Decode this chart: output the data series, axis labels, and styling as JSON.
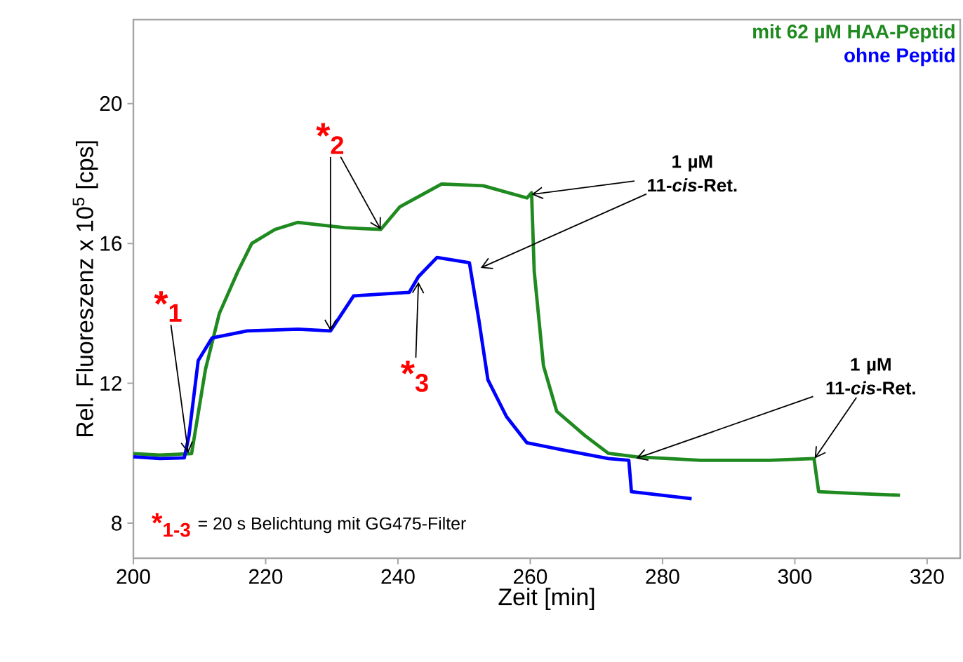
{
  "chart_data": {
    "type": "line",
    "xlabel": "Zeit [min]",
    "ylabel": "Rel. Fluoreszenz x 10$^{5}$ [cps]",
    "xlim": [
      200,
      325
    ],
    "xticks": [
      200,
      220,
      240,
      260,
      280,
      300,
      320
    ],
    "ylim": [
      7,
      22.4
    ],
    "yticks": [
      8,
      12,
      16,
      20
    ],
    "grid": false,
    "legend": "top right",
    "marker": "none",
    "line_style": "solid",
    "series": [
      {
        "name": "mit 62 µM HAA-Peptid",
        "color": "#1f8a1f",
        "x": [
          200,
          204,
          208.8,
          210.9,
          213,
          215.8,
          217.9,
          221.4,
          224.8,
          231.9,
          237.4,
          240.3,
          246.6,
          252.9,
          259.5,
          260.2,
          260.6,
          262,
          264,
          268.3,
          271.8,
          276,
          285.7,
          296.2,
          302.9,
          303.6,
          309,
          315.9
        ],
        "values": [
          9.99,
          9.95,
          9.99,
          12.4,
          14.0,
          15.2,
          16.0,
          16.4,
          16.6,
          16.45,
          16.4,
          17.05,
          17.7,
          17.65,
          17.3,
          17.45,
          15.2,
          12.5,
          11.2,
          10.5,
          10.0,
          9.9,
          9.8,
          9.8,
          9.85,
          8.9,
          8.85,
          8.8
        ]
      },
      {
        "name": "ohne Peptid",
        "color": "#0000ff",
        "x": [
          200,
          204,
          207.7,
          208.4,
          209.8,
          211.9,
          217.2,
          224.9,
          229.8,
          233.3,
          241.7,
          243.1,
          245.9,
          250.8,
          252.2,
          253.6,
          256.4,
          259.5,
          264.8,
          271.8,
          274.9,
          275.3,
          284.4
        ],
        "values": [
          9.9,
          9.85,
          9.87,
          10.5,
          12.65,
          13.3,
          13.5,
          13.55,
          13.5,
          14.5,
          14.6,
          15.05,
          15.6,
          15.45,
          13.85,
          12.1,
          11.05,
          10.3,
          10.1,
          9.85,
          9.8,
          8.9,
          8.7
        ]
      }
    ],
    "annotations": [
      {
        "text": "*$_{1}$",
        "x": 208.3,
        "y": 10.0
      },
      {
        "text": "*$_{2}$",
        "x": 229.8,
        "y": 13.5
      },
      {
        "text": "*$_{3}$",
        "x": 243.1,
        "y": 14.9
      },
      {
        "text": "1 µM 11-*cis*-Ret.",
        "x": 260.2,
        "y": 17.4
      },
      {
        "text": "1 µM 11-*cis*-Ret.",
        "x": 303.0,
        "y": 9.85
      },
      "*$_{1-3}$",
      "= 20 s Belichtung mit GG475-Filter"
    ]
  }
}
